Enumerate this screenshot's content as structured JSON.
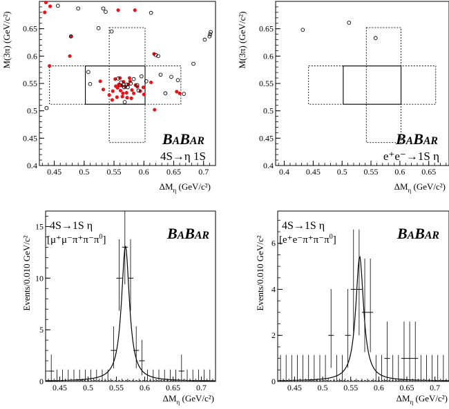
{
  "chart_data": [
    {
      "type": "scatter",
      "xlabel_main": "ΔM",
      "xlabel_sub": "η",
      "xlabel_unit": "(GeV/c²)",
      "ylabel_main": "M(3π)",
      "ylabel_unit": "(GeV/c²)",
      "logo": "BABAR",
      "process": "4S→η 1S",
      "xlim": [
        0.425,
        0.72
      ],
      "ylim": [
        0.4,
        0.7
      ],
      "xticks": [
        {
          "v": 0.45,
          "l": "0.45"
        },
        {
          "v": 0.5,
          "l": "0.5"
        },
        {
          "v": 0.55,
          "l": "0.55"
        },
        {
          "v": 0.6,
          "l": "0.6"
        },
        {
          "v": 0.65,
          "l": "0.65"
        },
        {
          "v": 0.7,
          "l": "0.7"
        }
      ],
      "yticks": [
        {
          "v": 0.4,
          "l": "0.4"
        },
        {
          "v": 0.45,
          "l": "0.45"
        },
        {
          "v": 0.5,
          "l": "0.5"
        },
        {
          "v": 0.55,
          "l": "0.55"
        },
        {
          "v": 0.6,
          "l": "0.6"
        },
        {
          "v": 0.65,
          "l": "0.65"
        }
      ],
      "signal_box": [
        0.502,
        0.602,
        0.512,
        0.582
      ],
      "sideband_x": [
        0.442,
        0.662,
        0.512,
        0.582
      ],
      "sideband_y": [
        0.542,
        0.602,
        0.442,
        0.652
      ],
      "series": [
        {
          "marker": "filled",
          "color": "#e8141c",
          "points": [
            [
              0.436,
              0.698
            ],
            [
              0.443,
              0.691
            ],
            [
              0.434,
              0.68
            ],
            [
              0.478,
              0.636
            ],
            [
              0.476,
              0.6
            ],
            [
              0.442,
              0.582
            ],
            [
              0.557,
              0.684
            ],
            [
              0.585,
              0.684
            ],
            [
              0.617,
              0.604
            ],
            [
              0.527,
              0.554
            ],
            [
              0.532,
              0.539
            ],
            [
              0.542,
              0.529
            ],
            [
              0.548,
              0.536
            ],
            [
              0.553,
              0.545
            ],
            [
              0.556,
              0.542
            ],
            [
              0.558,
              0.548
            ],
            [
              0.561,
              0.537
            ],
            [
              0.563,
              0.546
            ],
            [
              0.566,
              0.553
            ],
            [
              0.569,
              0.544
            ],
            [
              0.571,
              0.533
            ],
            [
              0.574,
              0.548
            ],
            [
              0.577,
              0.554
            ],
            [
              0.58,
              0.538
            ],
            [
              0.583,
              0.532
            ],
            [
              0.586,
              0.547
            ],
            [
              0.56,
              0.56
            ],
            [
              0.565,
              0.532
            ],
            [
              0.552,
              0.558
            ],
            [
              0.572,
              0.524
            ],
            [
              0.579,
              0.523
            ],
            [
              0.589,
              0.544
            ],
            [
              0.594,
              0.536
            ],
            [
              0.599,
              0.543
            ],
            [
              0.547,
              0.52
            ],
            [
              0.6,
              0.53
            ],
            [
              0.564,
              0.526
            ],
            [
              0.576,
              0.56
            ],
            [
              0.555,
              0.525
            ],
            [
              0.612,
              0.552
            ],
            [
              0.618,
              0.502
            ],
            [
              0.66,
              0.532
            ],
            [
              0.655,
              0.535
            ]
          ]
        },
        {
          "marker": "open",
          "color": "#000000",
          "points": [
            [
              0.437,
              0.505
            ],
            [
              0.456,
              0.692
            ],
            [
              0.478,
              0.636
            ],
            [
              0.49,
              0.687
            ],
            [
              0.507,
              0.571
            ],
            [
              0.51,
              0.549
            ],
            [
              0.524,
              0.651
            ],
            [
              0.532,
              0.687
            ],
            [
              0.536,
              0.681
            ],
            [
              0.546,
              0.645
            ],
            [
              0.557,
              0.559
            ],
            [
              0.56,
              0.547
            ],
            [
              0.562,
              0.552
            ],
            [
              0.566,
              0.548
            ],
            [
              0.567,
              0.543
            ],
            [
              0.571,
              0.548
            ],
            [
              0.573,
              0.543
            ],
            [
              0.578,
              0.55
            ],
            [
              0.583,
              0.558
            ],
            [
              0.589,
              0.547
            ],
            [
              0.591,
              0.537
            ],
            [
              0.596,
              0.563
            ],
            [
              0.604,
              0.554
            ],
            [
              0.568,
              0.516
            ],
            [
              0.612,
              0.679
            ],
            [
              0.62,
              0.602
            ],
            [
              0.624,
              0.6
            ],
            [
              0.628,
              0.566
            ],
            [
              0.636,
              0.532
            ],
            [
              0.646,
              0.562
            ],
            [
              0.657,
              0.556
            ],
            [
              0.667,
              0.531
            ],
            [
              0.683,
              0.586
            ],
            [
              0.702,
              0.63
            ],
            [
              0.71,
              0.636
            ],
            [
              0.711,
              0.64
            ],
            [
              0.712,
              0.644
            ]
          ]
        }
      ]
    },
    {
      "type": "scatter",
      "xlabel_main": "ΔM",
      "xlabel_sub": "η",
      "xlabel_unit": "(GeV/c²)",
      "ylabel_main": "M(3π)",
      "ylabel_unit": "(GeV/c²)",
      "logo": "BABAR",
      "process": "e⁺e⁻→1S η",
      "xlim": [
        0.385,
        0.685
      ],
      "ylim": [
        0.4,
        0.7
      ],
      "xticks": [
        {
          "v": 0.4,
          "l": "0.4"
        },
        {
          "v": 0.45,
          "l": "0.45"
        },
        {
          "v": 0.5,
          "l": "0.5"
        },
        {
          "v": 0.55,
          "l": "0.55"
        },
        {
          "v": 0.6,
          "l": "0.6"
        },
        {
          "v": 0.65,
          "l": "0.65"
        }
      ],
      "yticks": [
        {
          "v": 0.4,
          "l": "0.4"
        },
        {
          "v": 0.45,
          "l": "0.45"
        },
        {
          "v": 0.5,
          "l": "0.5"
        },
        {
          "v": 0.55,
          "l": "0.55"
        },
        {
          "v": 0.6,
          "l": "0.6"
        },
        {
          "v": 0.65,
          "l": "0.65"
        }
      ],
      "signal_box": [
        0.502,
        0.602,
        0.512,
        0.582
      ],
      "sideband_x": [
        0.442,
        0.662,
        0.512,
        0.582
      ],
      "sideband_y": [
        0.542,
        0.602,
        0.442,
        0.652
      ],
      "series": [
        {
          "marker": "open",
          "color": "#000000",
          "points": [
            [
              0.432,
              0.648
            ],
            [
              0.512,
              0.661
            ],
            [
              0.558,
              0.633
            ]
          ]
        }
      ]
    },
    {
      "type": "histogram",
      "ylabel": "Events/0.010 GeV/c²",
      "xlabel_main": "ΔM",
      "xlabel_sub": "η",
      "xlabel_unit": "(GeV/c²)",
      "logo": "BABAR",
      "process": "4S→1S η",
      "decay_main": "μ⁺μ⁻π⁺π⁻π",
      "decay_sup": "0",
      "xlim": [
        0.425,
        0.725
      ],
      "ylim": [
        0,
        16.5
      ],
      "xticks": [
        {
          "v": 0.45,
          "l": "0.45"
        },
        {
          "v": 0.5,
          "l": "0.5"
        },
        {
          "v": 0.55,
          "l": "0.55"
        },
        {
          "v": 0.6,
          "l": "0.6"
        },
        {
          "v": 0.65,
          "l": "0.65"
        },
        {
          "v": 0.7,
          "l": "0.7"
        }
      ],
      "yticks": [
        {
          "v": 0,
          "l": "0"
        },
        {
          "v": 5,
          "l": "5"
        },
        {
          "v": 10,
          "l": "10"
        },
        {
          "v": 15,
          "l": "15"
        }
      ],
      "bins": [
        0.435,
        0.445,
        0.455,
        0.465,
        0.475,
        0.485,
        0.495,
        0.505,
        0.515,
        0.525,
        0.535,
        0.545,
        0.555,
        0.565,
        0.575,
        0.585,
        0.595,
        0.605,
        0.615,
        0.625,
        0.635,
        0.645,
        0.655,
        0.665,
        0.675,
        0.685,
        0.695,
        0.705,
        0.715
      ],
      "values": [
        1,
        0,
        0,
        0,
        0,
        0,
        0,
        0,
        0,
        0,
        0,
        3,
        10,
        13,
        10,
        3,
        2,
        0,
        0,
        0,
        0,
        0,
        0,
        1,
        0,
        0,
        0,
        0,
        0
      ],
      "fit": {
        "peak_x": 0.566,
        "peak_y": 13.1,
        "width": 0.0085
      }
    },
    {
      "type": "histogram",
      "ylabel": "Events/0.010 GeV/c²",
      "xlabel_main": "ΔM",
      "xlabel_sub": "η",
      "xlabel_unit": "(GeV/c²)",
      "logo": "BABAR",
      "process": "4S→1S η",
      "decay_main": "e⁺e⁻π⁺π⁻π",
      "decay_sup": "0",
      "xlim": [
        0.42,
        0.725
      ],
      "ylim": [
        0,
        7.4
      ],
      "xticks": [
        {
          "v": 0.45,
          "l": "0.45"
        },
        {
          "v": 0.5,
          "l": "0.5"
        },
        {
          "v": 0.55,
          "l": "0.55"
        },
        {
          "v": 0.6,
          "l": "0.6"
        },
        {
          "v": 0.65,
          "l": "0.65"
        },
        {
          "v": 0.7,
          "l": "0.7"
        }
      ],
      "yticks": [
        {
          "v": 0,
          "l": "0"
        },
        {
          "v": 2,
          "l": "2"
        },
        {
          "v": 4,
          "l": "4"
        },
        {
          "v": 6,
          "l": "6"
        }
      ],
      "bins": [
        0.425,
        0.435,
        0.445,
        0.455,
        0.465,
        0.475,
        0.485,
        0.495,
        0.505,
        0.515,
        0.525,
        0.535,
        0.545,
        0.555,
        0.565,
        0.575,
        0.585,
        0.595,
        0.605,
        0.615,
        0.625,
        0.635,
        0.645,
        0.655,
        0.665,
        0.675,
        0.685,
        0.695,
        0.705,
        0.715
      ],
      "values": [
        0,
        0,
        0,
        0,
        0,
        0,
        0,
        0,
        0,
        2,
        0,
        0,
        2,
        4,
        4,
        3,
        3,
        0,
        0,
        1,
        0,
        0,
        1,
        1,
        1,
        0,
        0,
        0,
        0,
        0
      ],
      "fit": {
        "peak_x": 0.566,
        "peak_y": 5.4,
        "width": 0.0085
      }
    }
  ]
}
